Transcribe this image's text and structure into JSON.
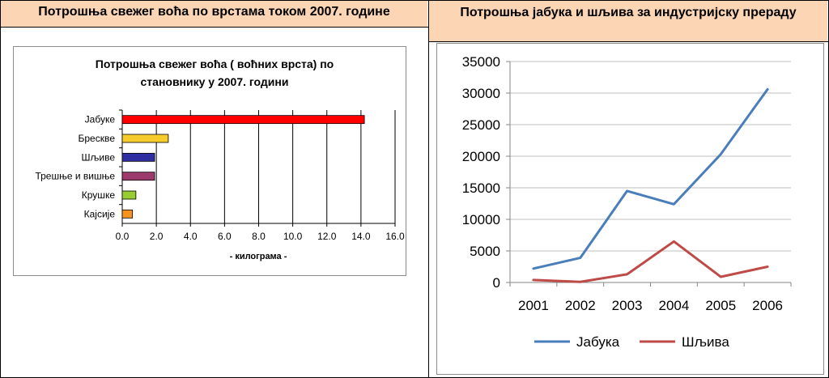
{
  "header": {
    "left_title": "Потрошња свежег воћа по врстама током 2007. године",
    "right_title": "Потрошња јабука и шљива за индустријску прераду"
  },
  "chart_data": [
    {
      "type": "bar",
      "orientation": "horizontal",
      "title": "Потрошња свежег воћа ( воћних врста) по становнику у 2007. години",
      "title_lines": [
        "Потрошња свежег воћа ( воћних врста) по",
        "становнику у 2007. години"
      ],
      "xlabel": "- килограма -",
      "ylabel": "",
      "categories": [
        "Јабуке",
        "Бресквe",
        "Шљиве",
        "Трешње и вишње",
        "Крушке",
        "Кајсије"
      ],
      "values": [
        14.2,
        2.7,
        1.9,
        1.9,
        0.8,
        0.6
      ],
      "colors": [
        "#ff0000",
        "#f5cc2b",
        "#2f2ea0",
        "#9b3a6b",
        "#99cc33",
        "#f7941d"
      ],
      "xlim": [
        0,
        16
      ],
      "xticks": [
        "0.0",
        "2.0",
        "4.0",
        "6.0",
        "8.0",
        "10.0",
        "12.0",
        "14.0",
        "16.0"
      ],
      "grid": "vertical",
      "legend": "none"
    },
    {
      "type": "line",
      "title": "",
      "xlabel": "",
      "ylabel": "",
      "x": [
        "2001",
        "2002",
        "2003",
        "2004",
        "2005",
        "2006"
      ],
      "series": [
        {
          "name": "Јабука",
          "color": "#4a7ebb",
          "values": [
            2200,
            3900,
            14500,
            12400,
            20300,
            30600
          ]
        },
        {
          "name": "Шљива",
          "color": "#be4b48",
          "values": [
            400,
            100,
            1300,
            6500,
            900,
            2500
          ]
        }
      ],
      "ylim": [
        0,
        35000
      ],
      "yticks": [
        "0",
        "5000",
        "10000",
        "15000",
        "20000",
        "25000",
        "30000",
        "35000"
      ],
      "grid": "horizontal",
      "legend": "bottom"
    }
  ]
}
